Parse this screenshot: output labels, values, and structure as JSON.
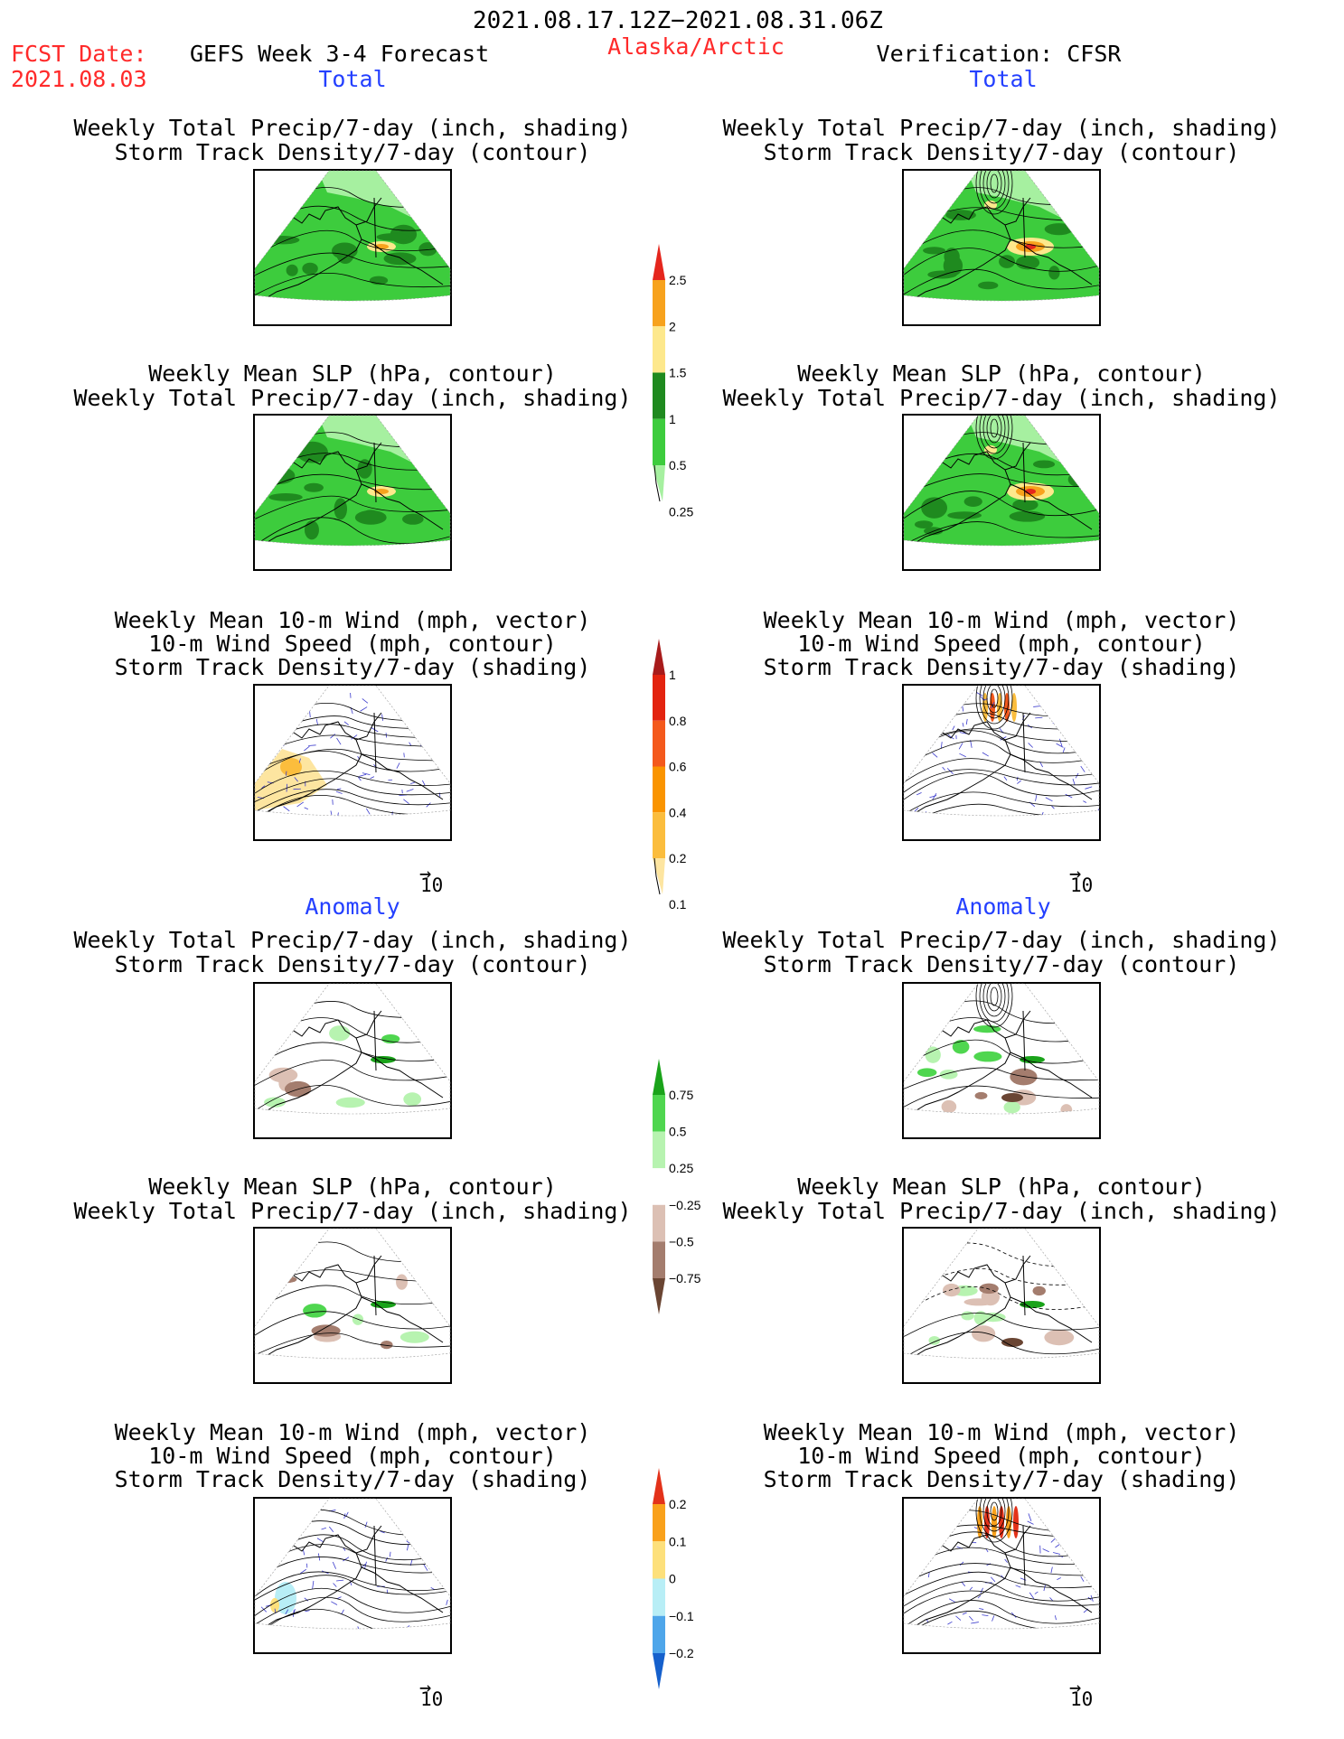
{
  "header": {
    "date_range": "2021.08.17.12Z−2021.08.31.06Z",
    "fcst_label": "FCST Date:",
    "fcst_date": "2021.08.03",
    "forecast_title": "GEFS Week 3-4 Forecast",
    "region": "Alaska/Arctic",
    "verification": "Verification: CFSR"
  },
  "sections": {
    "total": "Total",
    "anomaly": "Anomaly"
  },
  "titles": {
    "precip_track": [
      "Weekly Total Precip/7-day (inch, shading)",
      "Storm Track Density/7-day (contour)"
    ],
    "slp_precip": [
      "Weekly Mean SLP (hPa, contour)",
      "Weekly Total Precip/7-day (inch, shading)"
    ],
    "wind_track": [
      "Weekly Mean 10-m Wind (mph, vector)",
      "10-m Wind Speed (mph, contour)",
      "Storm Track Density/7-day (shading)"
    ]
  },
  "vector_scale": "10",
  "colorbars": {
    "total_precip": {
      "labels": [
        "2.5",
        "2",
        "1.5",
        "1",
        "0.5",
        "0.25"
      ],
      "colors": [
        "#e5261d",
        "#f7a21d",
        "#fde88c",
        "#1f8a1f",
        "#3dcc3d",
        "#a6f0a0"
      ]
    },
    "total_track": {
      "labels": [
        "1",
        "0.8",
        "0.6",
        "0.4",
        "0.2",
        "0.1"
      ],
      "colors": [
        "#a81b1b",
        "#e3230f",
        "#f4591c",
        "#fa9400",
        "#fbbd3d",
        "#fde5a0"
      ]
    },
    "anom_precip": {
      "labels": [
        "0.75",
        "0.5",
        "0.25",
        "−0.25",
        "−0.5",
        "−0.75"
      ],
      "colors": [
        "#1aa31a",
        "#4fd64f",
        "#b7f3b0",
        "#ffffff",
        "#dcc0b4",
        "#a47d6e",
        "#6a4533"
      ]
    },
    "anom_track": {
      "labels": [
        "0.2",
        "0.1",
        "0",
        "−0.1",
        "−0.2"
      ],
      "colors": [
        "#e3321a",
        "#f9a11b",
        "#fde07b",
        "#b8eef6",
        "#4ea6ea",
        "#1560cc"
      ]
    }
  }
}
